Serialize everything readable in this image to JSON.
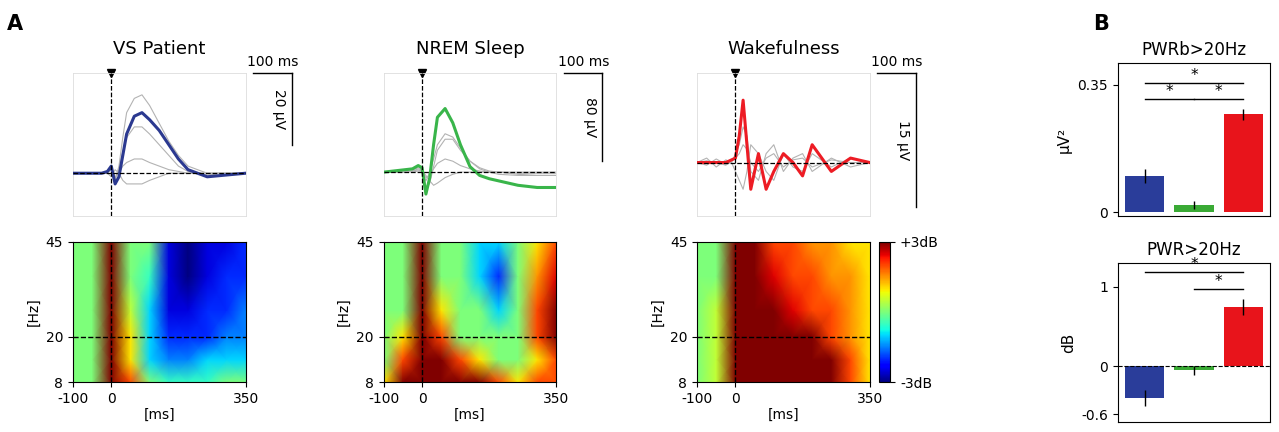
{
  "panel_labels": [
    "A",
    "B"
  ],
  "chart_data": [
    {
      "type": "line",
      "title": "VS Patient",
      "x": [
        -100,
        -75,
        -50,
        -25,
        -10,
        0,
        10,
        20,
        30,
        40,
        60,
        80,
        100,
        125,
        150,
        175,
        200,
        250,
        300,
        350
      ],
      "series": [
        {
          "color": "#b3b3b3",
          "values": [
            0,
            0,
            0,
            0,
            0.5,
            2,
            -2,
            2,
            10,
            17,
            21,
            22,
            19,
            14,
            9,
            5,
            2,
            0,
            0,
            0
          ]
        },
        {
          "color": "#b3b3b3",
          "values": [
            0,
            0,
            0,
            0,
            0,
            1,
            -1,
            0,
            2,
            3,
            4,
            4,
            3,
            2,
            1,
            0.5,
            0,
            0,
            0,
            0
          ]
        },
        {
          "color": "#b3b3b3",
          "values": [
            0,
            0,
            0,
            0,
            0,
            -1,
            1,
            0,
            -2,
            -3,
            -3,
            -3,
            -2,
            -1,
            0,
            0,
            0,
            0,
            0,
            0
          ]
        },
        {
          "color": "#b3b3b3",
          "values": [
            0,
            0,
            0,
            0,
            0.3,
            1.5,
            -1.5,
            1,
            6,
            10,
            13,
            13,
            11,
            8,
            5,
            2,
            0.5,
            -0.5,
            0,
            0
          ]
        },
        {
          "color": "#2b3990",
          "values": [
            0,
            0,
            0,
            0,
            0.5,
            2,
            -3,
            -1,
            5,
            11,
            16,
            17,
            15,
            12,
            8,
            4,
            1,
            -1,
            -0.5,
            0
          ]
        }
      ],
      "xlim": [
        -100,
        350
      ],
      "ylim": [
        -12,
        28
      ],
      "tick_labels": false,
      "stimulus": 0,
      "hline": 0,
      "x_scale_bar": {
        "value": 100,
        "label": "100 ms"
      },
      "y_scale_bar": {
        "value": 20,
        "label": "20 µV"
      }
    },
    {
      "type": "line",
      "title": "NREM Sleep",
      "x": [
        -100,
        -75,
        -50,
        -25,
        -10,
        0,
        10,
        20,
        30,
        40,
        60,
        80,
        100,
        125,
        150,
        175,
        200,
        250,
        300,
        350
      ],
      "series": [
        {
          "color": "#b3b3b3",
          "values": [
            0,
            1,
            1,
            2,
            4,
            3,
            -15,
            -10,
            5,
            20,
            30,
            30,
            20,
            10,
            3,
            0,
            -2,
            -3,
            -3,
            -3
          ]
        },
        {
          "color": "#b3b3b3",
          "values": [
            0,
            0,
            0,
            0,
            1,
            1,
            -3,
            -8,
            -12,
            -10,
            -5,
            -2,
            0,
            0,
            0,
            0,
            0,
            0,
            0,
            0
          ]
        },
        {
          "color": "#b3b3b3",
          "values": [
            0,
            0,
            1,
            1,
            3,
            2,
            -8,
            0,
            12,
            25,
            35,
            32,
            22,
            10,
            4,
            1,
            0,
            -2,
            -3,
            -3
          ]
        },
        {
          "color": "#b3b3b3",
          "values": [
            0,
            0,
            0,
            1,
            2,
            1,
            -5,
            -3,
            3,
            8,
            12,
            10,
            6,
            3,
            1,
            0,
            0,
            -1,
            -1,
            -1
          ]
        },
        {
          "color": "#39b54a",
          "values": [
            0,
            1,
            2,
            3,
            6,
            4,
            -20,
            -5,
            25,
            50,
            58,
            45,
            25,
            5,
            -3,
            -6,
            -8,
            -12,
            -14,
            -14
          ]
        }
      ],
      "xlim": [
        -100,
        350
      ],
      "ylim": [
        -40,
        90
      ],
      "tick_labels": false,
      "stimulus": 0,
      "hline": 0,
      "x_scale_bar": {
        "value": 100,
        "label": "100 ms"
      },
      "y_scale_bar": {
        "value": 80,
        "label": "80 µV"
      }
    },
    {
      "type": "line",
      "title": "Wakefulness",
      "x": [
        -100,
        -75,
        -50,
        -25,
        -10,
        0,
        10,
        20,
        30,
        40,
        60,
        80,
        100,
        125,
        150,
        175,
        200,
        250,
        300,
        350
      ],
      "series": [
        {
          "color": "#b3b3b3",
          "values": [
            0,
            0.5,
            -0.5,
            0.3,
            0,
            1,
            2,
            4,
            3,
            -1,
            -2,
            1,
            2,
            -1,
            0.5,
            1,
            -1,
            0.5,
            -0.5,
            0
          ]
        },
        {
          "color": "#b3b3b3",
          "values": [
            0,
            -0.3,
            0.4,
            -0.2,
            0,
            -1,
            -2,
            -3,
            -1,
            2,
            1,
            -1,
            -2,
            1,
            -0.5,
            -1,
            1,
            -0.5,
            0.5,
            0
          ]
        },
        {
          "color": "#b3b3b3",
          "values": [
            0,
            0.2,
            0,
            -0.3,
            0.2,
            0.5,
            1,
            2,
            1.5,
            0,
            -1,
            0.5,
            1,
            -0.5,
            0.3,
            0.5,
            -0.5,
            0.3,
            0,
            0
          ]
        },
        {
          "color": "#ed1c24",
          "values": [
            0,
            0,
            0,
            0,
            0.3,
            0.5,
            3,
            7,
            2,
            -3,
            1,
            -3,
            -1,
            1,
            0,
            -1.5,
            2,
            -1,
            0.5,
            0
          ]
        }
      ],
      "xlim": [
        -100,
        350
      ],
      "ylim": [
        -6,
        10
      ],
      "tick_labels": false,
      "stimulus": 0,
      "hline": 0,
      "x_scale_bar": {
        "value": 100,
        "label": "100 ms"
      },
      "y_scale_bar": {
        "value": 15,
        "label": "15 µV"
      }
    },
    {
      "type": "heatmap",
      "x": [
        -100,
        -50,
        0,
        50,
        100,
        150,
        200,
        250,
        300,
        350
      ],
      "y": [
        8,
        14,
        20,
        27,
        36,
        45
      ],
      "cells": [
        [
          0,
          0,
          3,
          2,
          0,
          -0.5,
          -0.5,
          -0.5,
          0,
          0
        ],
        [
          0,
          0,
          3,
          1,
          -1,
          -1.5,
          -1.5,
          -1,
          -1,
          -1
        ],
        [
          0,
          0,
          3,
          1,
          -1,
          -2,
          -2,
          -2,
          -1.5,
          -1.5
        ],
        [
          0,
          0,
          3,
          0.5,
          -1,
          -2.5,
          -2.5,
          -2,
          -2,
          -1.5
        ],
        [
          0,
          0,
          3,
          0,
          -0.5,
          -2.5,
          -3,
          -2.5,
          -2,
          -2
        ],
        [
          0,
          0,
          3,
          0,
          0,
          -2.5,
          -3,
          -2.5,
          -2.5,
          -2
        ]
      ],
      "clim": [
        -3,
        3
      ],
      "xlim": [
        -100,
        350
      ],
      "ylim": [
        8,
        45
      ],
      "xticks": [
        -100,
        0,
        350
      ],
      "yticks": [
        8,
        20,
        45
      ],
      "xlabel": "[ms]",
      "ylabel": "[Hz]",
      "hline": 20,
      "vline": 0
    },
    {
      "type": "heatmap",
      "x": [
        -100,
        -50,
        0,
        50,
        100,
        150,
        200,
        250,
        300,
        350
      ],
      "y": [
        8,
        14,
        20,
        27,
        36,
        45
      ],
      "cells": [
        [
          1,
          3,
          3,
          3,
          3,
          3,
          2,
          1,
          2,
          2
        ],
        [
          0,
          2,
          3,
          3,
          2,
          1,
          0,
          0,
          1,
          2
        ],
        [
          0,
          1,
          3,
          2,
          0,
          0,
          0,
          0,
          2,
          3
        ],
        [
          0,
          0,
          3,
          1,
          0,
          0,
          -1,
          0,
          2,
          3
        ],
        [
          0,
          0,
          3,
          0,
          0,
          -1,
          -2,
          0,
          1.5,
          2.5
        ],
        [
          0,
          0,
          3,
          0,
          0,
          -1,
          -1,
          0,
          1,
          2
        ]
      ],
      "clim": [
        -3,
        3
      ],
      "xlim": [
        -100,
        350
      ],
      "ylim": [
        8,
        45
      ],
      "xticks": [
        -100,
        0,
        350
      ],
      "yticks": [
        8,
        20,
        45
      ],
      "xlabel": "[ms]",
      "ylabel": "[Hz]",
      "hline": 20,
      "vline": 0
    },
    {
      "type": "heatmap",
      "x": [
        -100,
        -50,
        0,
        50,
        100,
        150,
        200,
        250,
        300,
        350
      ],
      "y": [
        8,
        14,
        20,
        27,
        36,
        45
      ],
      "cells": [
        [
          0,
          0.5,
          3,
          3,
          3,
          3,
          3,
          3,
          2,
          1
        ],
        [
          0,
          0.5,
          3,
          3,
          3,
          3,
          3,
          3,
          2,
          1
        ],
        [
          0,
          0.5,
          3,
          3,
          3,
          3,
          3,
          2,
          1.5,
          1
        ],
        [
          0,
          0.5,
          3,
          3,
          3,
          2.5,
          2,
          2,
          1.5,
          1
        ],
        [
          0,
          0,
          3,
          3,
          2.5,
          2,
          2,
          1.5,
          1.5,
          1
        ],
        [
          0,
          0,
          3,
          3,
          2,
          2,
          1.5,
          1.5,
          1,
          1
        ]
      ],
      "clim": [
        -3,
        3
      ],
      "xlim": [
        -100,
        350
      ],
      "ylim": [
        8,
        45
      ],
      "xticks": [
        -100,
        0,
        350
      ],
      "yticks": [
        8,
        20,
        45
      ],
      "xlabel": "[ms]",
      "ylabel": "[Hz]",
      "hline": 20,
      "vline": 0,
      "colorbar_ticks": [
        {
          "value": 3,
          "label": "+3dB"
        },
        {
          "value": -3,
          "label": "-3dB"
        }
      ]
    },
    {
      "type": "bar",
      "title": "PWRb>20Hz",
      "ylabel": "µV²",
      "categories": [
        null,
        null,
        null
      ],
      "values": [
        0.1,
        0.02,
        0.27
      ],
      "errors": [
        0.02,
        0.01,
        0.015
      ],
      "colors": [
        "#2a3d9a",
        "#3aaa35",
        "#e8141b"
      ],
      "ylim": [
        -0.01,
        0.41
      ],
      "yticks": [
        0,
        0.35
      ],
      "tick_labels": "y",
      "significance": [
        {
          "pair": [
            0,
            2
          ],
          "label": "*"
        },
        {
          "pair": [
            0,
            1
          ],
          "label": "*"
        },
        {
          "pair": [
            1,
            2
          ],
          "label": "*"
        }
      ]
    },
    {
      "type": "bar",
      "title": "PWR>20Hz",
      "ylabel": "dB",
      "categories": [
        null,
        null,
        null
      ],
      "values": [
        -0.4,
        -0.05,
        0.75
      ],
      "errors": [
        0.1,
        0.06,
        0.1
      ],
      "colors": [
        "#2a3d9a",
        "#3aaa35",
        "#e8141b"
      ],
      "ylim": [
        -0.7,
        1.3
      ],
      "yticks": [
        -0.6,
        0,
        1
      ],
      "tick_labels": "y",
      "hline": 0,
      "significance": [
        {
          "pair": [
            0,
            2
          ],
          "label": "*"
        },
        {
          "pair": [
            1,
            2
          ],
          "label": "*"
        }
      ]
    }
  ]
}
